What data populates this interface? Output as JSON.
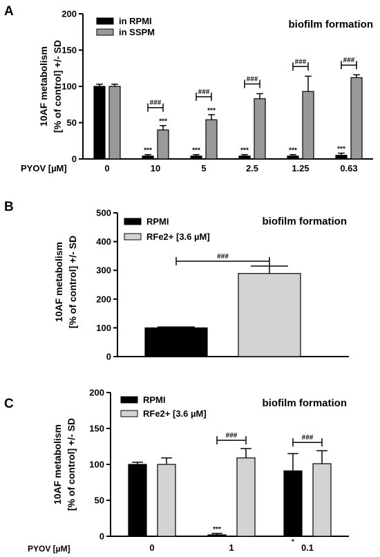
{
  "chart_data": [
    {
      "panel": "A",
      "type": "bar",
      "title": "biofilm formation",
      "ylabel": [
        "10AF metabolism",
        "[% of control] +/- SD"
      ],
      "xlabel": "PYOV [µM]",
      "categories": [
        "0",
        "10",
        "5",
        "2.5",
        "1.25",
        "0.63"
      ],
      "ylim": [
        0,
        200
      ],
      "yticks": [
        "0",
        "50",
        "100",
        "150",
        "200"
      ],
      "series": [
        {
          "name": "in RPMI",
          "color": "#000000",
          "values": [
            100,
            4,
            4,
            4,
            4,
            5
          ],
          "errors": [
            3,
            2,
            2,
            2,
            2,
            3
          ],
          "marks": [
            "",
            "***",
            "***",
            "***",
            "***",
            "***"
          ]
        },
        {
          "name": "in SSPM",
          "color": "#999999",
          "values": [
            100,
            40,
            54,
            83,
            93,
            112
          ],
          "errors": [
            3,
            6,
            7,
            7,
            21,
            4
          ],
          "marks": [
            "",
            "***",
            "***",
            "",
            "",
            ""
          ]
        }
      ],
      "brackets": [
        "",
        "###",
        "###",
        "###",
        "###",
        "###"
      ]
    },
    {
      "panel": "B",
      "type": "bar",
      "title": "biofilm formation",
      "ylabel": [
        "10AF metabolism",
        "[% of control] +/- SD"
      ],
      "ylim": [
        0,
        500
      ],
      "yticks": [
        "0",
        "100",
        "200",
        "300",
        "400",
        "500"
      ],
      "series": [
        {
          "name": "RPMI",
          "color": "#000000",
          "value": 100,
          "error": 3
        },
        {
          "name": "RFe2+ [3.6 µM]",
          "color": "#d3d3d3",
          "value": 289,
          "error": 26
        }
      ],
      "bracket": "###"
    },
    {
      "panel": "C",
      "type": "bar",
      "title": "biofilm formation",
      "ylabel": [
        "10AF metabolism",
        "[% of control] +/- SD"
      ],
      "xlabel": "PYOV [µM]",
      "categories": [
        "0",
        "1",
        "0.1"
      ],
      "ylim": [
        0,
        200
      ],
      "yticks": [
        "0",
        "50",
        "100",
        "150",
        "200"
      ],
      "series": [
        {
          "name": "RPMI",
          "color": "#000000",
          "values": [
            100,
            2,
            91
          ],
          "errors": [
            3,
            2,
            24
          ],
          "marks": [
            "",
            "***",
            "*"
          ]
        },
        {
          "name": "RFe2+ [3.6 µM]",
          "color": "#d3d3d3",
          "values": [
            100,
            109,
            101
          ],
          "errors": [
            9,
            13,
            18
          ],
          "marks": [
            "",
            "",
            ""
          ]
        }
      ],
      "brackets": [
        "",
        "###",
        "###"
      ]
    }
  ]
}
